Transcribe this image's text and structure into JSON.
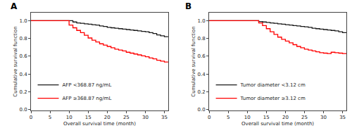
{
  "chart_data": [
    {
      "type": "step",
      "title": "A",
      "xlabel": "Overall survival time (month)",
      "ylabel": "Cumulative survival function",
      "series": [
        {
          "name": "AFP <368.87 ng/mL",
          "color": "#1a1a1a",
          "x": [
            0,
            10,
            11,
            12,
            13,
            14,
            15,
            16,
            17,
            18,
            19,
            20,
            21,
            22,
            23,
            24,
            25,
            26,
            27,
            28,
            29,
            30,
            31,
            32,
            33,
            34,
            35,
            36
          ],
          "values": [
            1.0,
            1.0,
            0.985,
            0.975,
            0.97,
            0.965,
            0.96,
            0.955,
            0.95,
            0.94,
            0.935,
            0.925,
            0.92,
            0.915,
            0.91,
            0.905,
            0.9,
            0.895,
            0.89,
            0.885,
            0.88,
            0.875,
            0.865,
            0.855,
            0.84,
            0.83,
            0.82,
            0.82
          ]
        },
        {
          "name": "AFP ≥368.87 ng/mL",
          "color": "#ff0000",
          "x": [
            0,
            9,
            10,
            11,
            12,
            13,
            14,
            15,
            16,
            17,
            18,
            19,
            20,
            21,
            22,
            23,
            24,
            25,
            26,
            27,
            28,
            29,
            30,
            31,
            32,
            33,
            34,
            35,
            36
          ],
          "values": [
            1.0,
            1.0,
            0.95,
            0.92,
            0.89,
            0.865,
            0.835,
            0.805,
            0.78,
            0.76,
            0.74,
            0.725,
            0.71,
            0.695,
            0.68,
            0.67,
            0.66,
            0.645,
            0.635,
            0.625,
            0.615,
            0.605,
            0.595,
            0.58,
            0.57,
            0.555,
            0.545,
            0.535,
            0.535
          ]
        }
      ],
      "xlim": [
        0,
        36
      ],
      "ylim": [
        -0.01,
        1.09
      ],
      "xticks": [
        0,
        5,
        10,
        15,
        20,
        25,
        30,
        35
      ],
      "yticks": [
        {
          "value": 0.0,
          "label": "0.0"
        },
        0.2,
        0.4,
        0.6,
        0.8,
        {
          "value": 1.0,
          "label": "1.0"
        }
      ],
      "grid": false,
      "legend": "lower left"
    },
    {
      "type": "step",
      "title": "B",
      "xlabel": "Overall survival time (month)",
      "ylabel": "Cumulative survival function",
      "series": [
        {
          "name": "Tumor diameter <3.12 cm",
          "color": "#1a1a1a",
          "x": [
            0,
            12,
            13,
            14,
            15,
            16,
            17,
            18,
            19,
            20,
            21,
            22,
            23,
            24,
            25,
            26,
            27,
            28,
            29,
            30,
            31,
            32,
            33,
            34,
            35,
            36
          ],
          "values": [
            1.0,
            1.0,
            0.99,
            0.985,
            0.98,
            0.975,
            0.97,
            0.965,
            0.96,
            0.955,
            0.95,
            0.945,
            0.94,
            0.935,
            0.93,
            0.925,
            0.915,
            0.91,
            0.905,
            0.9,
            0.895,
            0.89,
            0.885,
            0.875,
            0.865,
            0.865
          ]
        },
        {
          "name": "Tumor diameter ≥3.12 cm",
          "color": "#ff0000",
          "x": [
            0,
            12,
            13,
            14,
            15,
            16,
            17,
            18,
            19,
            20,
            21,
            22,
            23,
            24,
            25,
            26,
            27,
            28,
            29,
            30,
            31,
            32,
            33,
            34,
            35,
            36
          ],
          "values": [
            1.0,
            1.0,
            0.975,
            0.945,
            0.91,
            0.875,
            0.845,
            0.815,
            0.79,
            0.77,
            0.75,
            0.73,
            0.71,
            0.695,
            0.68,
            0.67,
            0.66,
            0.65,
            0.64,
            0.635,
            0.63,
            0.645,
            0.64,
            0.635,
            0.63,
            0.63
          ]
        }
      ],
      "xlim": [
        0,
        36
      ],
      "ylim": [
        -0.01,
        1.09
      ],
      "xticks": [
        0,
        5,
        10,
        15,
        20,
        25,
        30,
        35
      ],
      "yticks": [
        {
          "value": 0.0,
          "label": "0.0"
        },
        0.2,
        0.4,
        0.6,
        0.8,
        {
          "value": 1.0,
          "label": "1.0"
        }
      ],
      "grid": false,
      "legend": "lower left"
    }
  ]
}
